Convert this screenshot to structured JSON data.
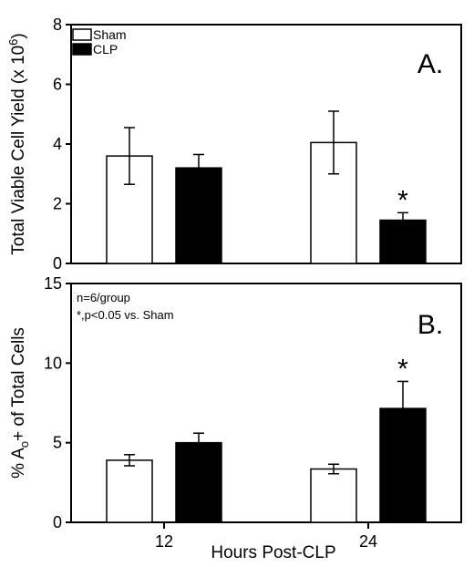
{
  "chart_data": [
    {
      "type": "bar",
      "panel_label": "A.",
      "ylabel_main": "Total Viable Cell Yield",
      "ylabel_unit": "(x 10",
      "ylabel_exp": "6",
      "ylabel_close": ")",
      "ylim": [
        0,
        8
      ],
      "yticks": [
        "0",
        "2",
        "4",
        "6",
        "8"
      ],
      "categories": [
        "12",
        "24"
      ],
      "series": [
        {
          "name": "Sham",
          "values": [
            3.6,
            4.05
          ],
          "errors": [
            0.95,
            1.05
          ],
          "color": "#ffffff"
        },
        {
          "name": "CLP",
          "values": [
            3.2,
            1.45
          ],
          "errors": [
            0.45,
            0.25
          ],
          "color": "#000000"
        }
      ],
      "annotations": [
        {
          "text": "*",
          "series": 1,
          "category": 1
        }
      ],
      "legend_position": "top-left"
    },
    {
      "type": "bar",
      "panel_label": "B.",
      "ylabel_pre": "% A",
      "ylabel_sub": "o",
      "ylabel_post": "+  of Total Cells",
      "ylim": [
        0,
        15
      ],
      "yticks": [
        "0",
        "5",
        "10",
        "15"
      ],
      "categories": [
        "12",
        "24"
      ],
      "series": [
        {
          "name": "Sham",
          "values": [
            3.9,
            3.35
          ],
          "errors": [
            0.35,
            0.3
          ],
          "color": "#ffffff"
        },
        {
          "name": "CLP",
          "values": [
            5.0,
            7.15
          ],
          "errors": [
            0.6,
            1.7
          ],
          "color": "#000000"
        }
      ],
      "notes": [
        "n=6/group",
        "*,p<0.05 vs. Sham"
      ],
      "annotations": [
        {
          "text": "*",
          "series": 1,
          "category": 1
        }
      ],
      "xlabel": "Hours Post-CLP",
      "xticks": [
        "12",
        "24"
      ]
    }
  ]
}
